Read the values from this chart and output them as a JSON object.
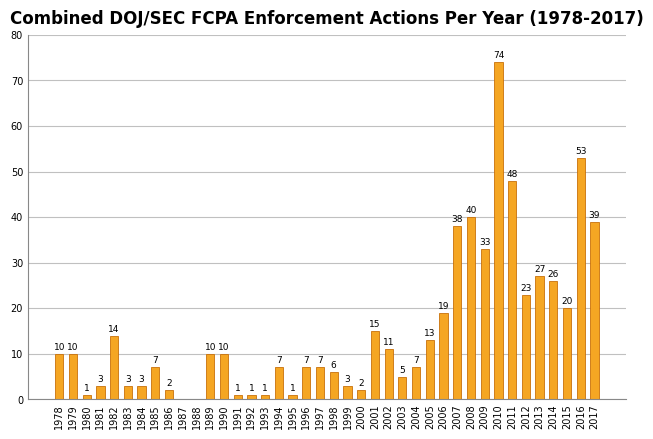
{
  "title": "Combined DOJ/SEC FCPA Enforcement Actions Per Year (1978-2017)",
  "years": [
    1978,
    1979,
    1980,
    1981,
    1982,
    1983,
    1984,
    1985,
    1986,
    1987,
    1988,
    1989,
    1990,
    1991,
    1992,
    1993,
    1994,
    1995,
    1996,
    1997,
    1998,
    1999,
    2000,
    2001,
    2002,
    2003,
    2004,
    2005,
    2006,
    2007,
    2008,
    2009,
    2010,
    2011,
    2012,
    2013,
    2014,
    2015,
    2016,
    2017
  ],
  "values": [
    10,
    10,
    1,
    3,
    14,
    3,
    3,
    7,
    2,
    0,
    0,
    10,
    10,
    1,
    1,
    1,
    7,
    1,
    7,
    7,
    6,
    3,
    2,
    15,
    11,
    5,
    7,
    13,
    19,
    38,
    40,
    33,
    74,
    48,
    23,
    27,
    26,
    20,
    53,
    39
  ],
  "bar_color": "#F5A623",
  "bar_edge_color": "#C8700A",
  "background_color": "#FFFFFF",
  "grid_color": "#C0C0C0",
  "ylim": [
    0,
    80
  ],
  "yticks": [
    0,
    10,
    20,
    30,
    40,
    50,
    60,
    70,
    80
  ],
  "title_fontsize": 12,
  "tick_fontsize": 7,
  "annotation_fontsize": 6.5,
  "bar_width": 0.6
}
